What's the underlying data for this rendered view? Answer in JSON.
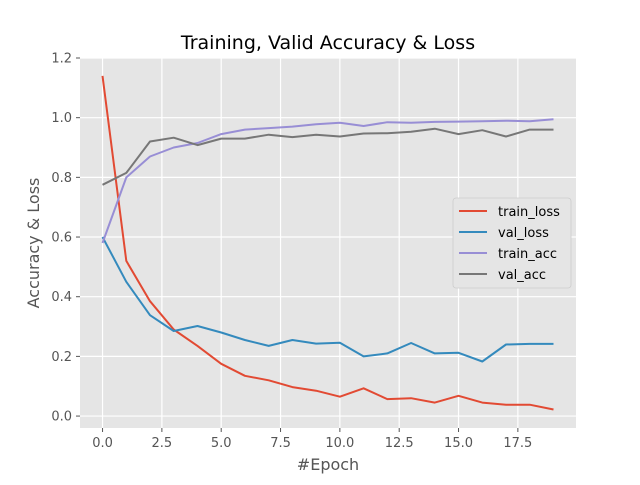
{
  "chart_data": {
    "type": "line",
    "title": "Training, Valid Accuracy & Loss",
    "xlabel": "#Epoch",
    "ylabel": "Accuracy & Loss",
    "xlim": [
      -0.95,
      19.95
    ],
    "ylim": [
      -0.04,
      1.2
    ],
    "xticks": [
      0,
      2.5,
      5,
      7.5,
      10,
      12.5,
      15,
      17.5
    ],
    "xtick_labels": [
      "0.0",
      "2.5",
      "5.0",
      "7.5",
      "10.0",
      "12.5",
      "15.0",
      "17.5"
    ],
    "yticks": [
      0,
      0.2,
      0.4,
      0.6,
      0.8,
      1.0,
      1.2
    ],
    "ytick_labels": [
      "0.0",
      "0.2",
      "0.4",
      "0.6",
      "0.8",
      "1.0",
      "1.2"
    ],
    "grid": true,
    "legend_position": "center-right",
    "x": [
      0,
      1,
      2,
      3,
      4,
      5,
      6,
      7,
      8,
      9,
      10,
      11,
      12,
      13,
      14,
      15,
      16,
      17,
      18,
      19
    ],
    "series": [
      {
        "name": "train_loss",
        "color": "#E24A33",
        "values": [
          1.14,
          0.52,
          0.385,
          0.29,
          0.235,
          0.175,
          0.135,
          0.12,
          0.097,
          0.085,
          0.065,
          0.093,
          0.057,
          0.06,
          0.045,
          0.068,
          0.045,
          0.038,
          0.038,
          0.022
        ]
      },
      {
        "name": "val_loss",
        "color": "#348ABD",
        "values": [
          0.6,
          0.45,
          0.338,
          0.285,
          0.302,
          0.28,
          0.255,
          0.235,
          0.255,
          0.243,
          0.246,
          0.2,
          0.21,
          0.245,
          0.21,
          0.212,
          0.183,
          0.24,
          0.242,
          0.242
        ]
      },
      {
        "name": "train_acc",
        "color": "#988ED5",
        "values": [
          0.58,
          0.8,
          0.87,
          0.9,
          0.915,
          0.945,
          0.96,
          0.965,
          0.97,
          0.978,
          0.983,
          0.972,
          0.985,
          0.983,
          0.986,
          0.987,
          0.988,
          0.99,
          0.988,
          0.995
        ]
      },
      {
        "name": "val_acc",
        "color": "#777777",
        "values": [
          0.775,
          0.815,
          0.92,
          0.933,
          0.908,
          0.93,
          0.93,
          0.943,
          0.935,
          0.943,
          0.937,
          0.947,
          0.948,
          0.953,
          0.963,
          0.945,
          0.958,
          0.937,
          0.96,
          0.96
        ]
      }
    ]
  }
}
